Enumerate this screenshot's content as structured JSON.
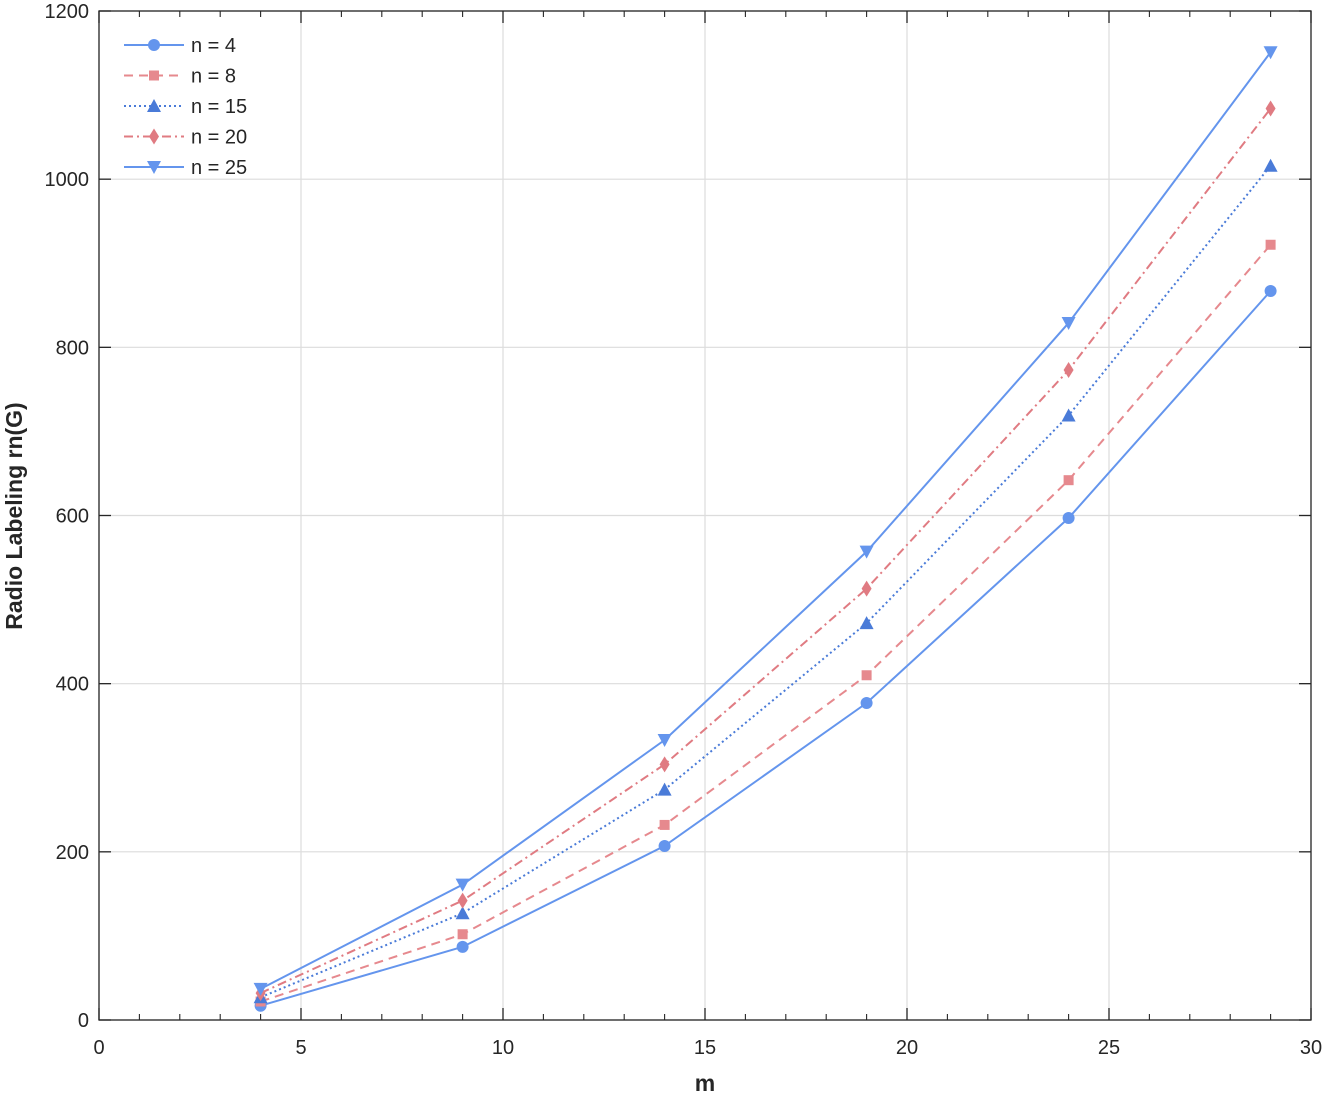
{
  "chart_data": {
    "type": "line",
    "xlabel": "m",
    "ylabel": "Radio Labeling rn(G)",
    "xlim": [
      0,
      30
    ],
    "ylim": [
      0,
      1200
    ],
    "xticks": [
      0,
      5,
      10,
      15,
      20,
      25,
      30
    ],
    "yticks": [
      0,
      200,
      400,
      600,
      800,
      1000,
      1200
    ],
    "x_minor_step": 1,
    "grid": true,
    "legend_position": "top-left",
    "x": [
      4,
      9,
      14,
      19,
      24,
      29
    ],
    "series": [
      {
        "name": "n = 4",
        "values": [
          17,
          87,
          207,
          377,
          597,
          867
        ],
        "color": "#6495ED",
        "dash": "solid",
        "marker": "circle"
      },
      {
        "name": "n = 8",
        "values": [
          22,
          102,
          232,
          410,
          642,
          922
        ],
        "color": "#E6898E",
        "dash": "dashed",
        "marker": "square"
      },
      {
        "name": "n = 15",
        "values": [
          27,
          127,
          274,
          472,
          719,
          1016
        ],
        "color": "#4A7BD8",
        "dash": "dotted",
        "marker": "triangle-up"
      },
      {
        "name": "n = 20",
        "values": [
          32,
          142,
          304,
          513,
          773,
          1084
        ],
        "color": "#E07B82",
        "dash": "dash-dot",
        "marker": "diamond"
      },
      {
        "name": "n = 25",
        "values": [
          37,
          161,
          333,
          557,
          829,
          1151
        ],
        "color": "#6495ED",
        "dash": "solid",
        "marker": "triangle-down"
      }
    ]
  }
}
